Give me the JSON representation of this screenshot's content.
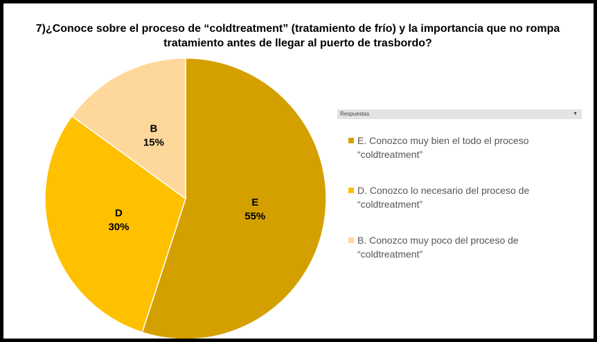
{
  "chart_data": {
    "type": "pie",
    "title": "7)¿Conoce sobre el proceso de “coldtreatment” (tratamiento de frío) y la importancia que no rompa tratamiento antes de llegar al puerto de trasbordo?",
    "legend_title": "Respuestas",
    "categories": [
      "E",
      "D",
      "B"
    ],
    "values": [
      55,
      30,
      15
    ],
    "value_labels": [
      "55%",
      "30%",
      "15%"
    ],
    "labels": [
      "E. Conozco muy bien el todo el proceso “coldtreatment”",
      "D. Conozco lo necesario del proceso de “coldtreatment”",
      "B. Conozco muy poco del proceso de “coldtreatment”"
    ],
    "colors": [
      "#d4a000",
      "#ffc000",
      "#fed89a"
    ],
    "legend": "right"
  }
}
